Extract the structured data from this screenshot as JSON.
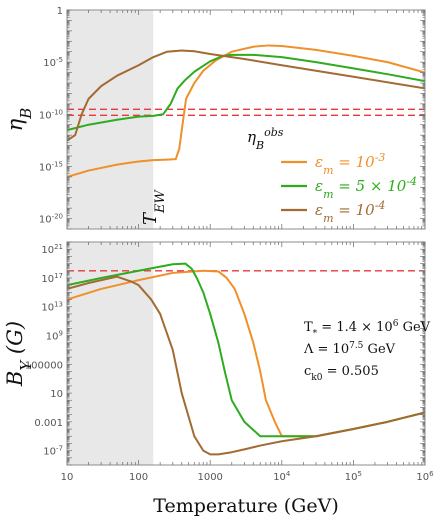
{
  "chart_data": [
    {
      "type": "line",
      "panel": "top",
      "ylabel": "η_B",
      "xscale": "log",
      "yscale": "log",
      "xlim": [
        10,
        1000000
      ],
      "ylim": [
        1e-21,
        1
      ],
      "yticks": [
        {
          "v": 1,
          "label": "1"
        },
        {
          "v": 1e-05,
          "label": "10^-5"
        },
        {
          "v": 1e-10,
          "label": "10^-10"
        },
        {
          "v": 1e-15,
          "label": "10^-15"
        },
        {
          "v": 1e-20,
          "label": "10^-20"
        }
      ],
      "shaded_region": {
        "x": [
          10,
          160
        ],
        "color": "#e8e8e8"
      },
      "ew_label": "T_EW",
      "reference_lines": [
        {
          "y": 3e-10,
          "color": "#e8383d",
          "style": "dashed"
        },
        {
          "y": 8e-11,
          "color": "#e8383d",
          "style": "dashed"
        }
      ],
      "obs_label": "η_B^obs",
      "legend_position": "right",
      "series": [
        {
          "name": "ε_m = 10^-3",
          "color": "#f0902a",
          "x": [
            10,
            20,
            50,
            100,
            160,
            250,
            330,
            370,
            410,
            460,
            600,
            800,
            1200,
            2000,
            4000,
            6500,
            10000,
            30000,
            100000,
            300000,
            1000000
          ],
          "y": [
            1e-16,
            4e-16,
            1.5e-15,
            3e-15,
            4e-15,
            4.5e-15,
            5e-15,
            5e-14,
            1e-11,
            3e-09,
            1e-07,
            1.5e-06,
            1.5e-05,
            0.0001,
            0.0003,
            0.0004,
            0.00035,
            0.00015,
            4e-05,
            1e-05,
            1e-06
          ]
        },
        {
          "name": "ε_m = 5 × 10^-4",
          "color": "#2fab1f",
          "x": [
            10,
            20,
            50,
            100,
            160,
            220,
            280,
            350,
            450,
            600,
            1000,
            1500,
            2000,
            4000,
            10000,
            30000,
            100000,
            300000,
            1000000
          ],
          "y": [
            3e-12,
            1e-11,
            3e-11,
            6e-11,
            7e-11,
            1e-10,
            1e-09,
            3e-08,
            2e-07,
            1.2e-06,
            1.2e-05,
            4e-05,
            5e-05,
            5e-05,
            3e-05,
            1e-05,
            2.5e-06,
            7e-07,
            1.5e-07
          ]
        },
        {
          "name": "ε_m = 10^-4",
          "color": "#a26b33",
          "x": [
            10,
            13,
            16,
            20,
            30,
            50,
            100,
            160,
            250,
            400,
            600,
            1000,
            3000,
            10000,
            100000,
            1000000
          ],
          "y": [
            3e-13,
            1e-12,
            1e-10,
            3e-09,
            5e-08,
            5e-07,
            5e-06,
            3e-05,
            0.0001,
            0.00013,
            0.00011,
            6e-05,
            2e-05,
            5e-06,
            4e-07,
            3e-08
          ]
        }
      ]
    },
    {
      "type": "line",
      "panel": "bottom",
      "ylabel": "B_Y (G)",
      "xlabel": "Temperature (GeV)",
      "xscale": "log",
      "yscale": "log",
      "xlim": [
        10,
        1000000
      ],
      "ylim": [
        1e-09,
        1e+22
      ],
      "xticks": [
        {
          "v": 10,
          "label": "10"
        },
        {
          "v": 100,
          "label": "100"
        },
        {
          "v": 1000,
          "label": "1000"
        },
        {
          "v": 10000,
          "label": "10^4"
        },
        {
          "v": 100000,
          "label": "10^5"
        },
        {
          "v": 1000000,
          "label": "10^6"
        }
      ],
      "yticks": [
        {
          "v": 1e+21,
          "label": "10^21"
        },
        {
          "v": 1e+17,
          "label": "10^17"
        },
        {
          "v": 10000000000000.0,
          "label": "10^13"
        },
        {
          "v": 1000000000.0,
          "label": "10^9"
        },
        {
          "v": 100000,
          "label": "100000"
        },
        {
          "v": 10,
          "label": "10"
        },
        {
          "v": 0.001,
          "label": "0.001"
        },
        {
          "v": 1e-07,
          "label": "10^-7"
        }
      ],
      "shaded_region": {
        "x": [
          10,
          160
        ],
        "color": "#e8e8e8"
      },
      "reference_lines": [
        {
          "y": 1e+18,
          "color": "#e8383d",
          "style": "dashed"
        }
      ],
      "annotations": [
        "T_* = 1.4 × 10^6 GeV",
        "Λ = 10^7.5 GeV",
        "c_k0 = 0.505"
      ],
      "series": [
        {
          "name": "ε_m = 10^-3",
          "color": "#f0902a",
          "x": [
            10,
            30,
            100,
            300,
            800,
            1300,
            1700,
            2200,
            3000,
            4000,
            5000,
            6000,
            8000,
            10000,
            30000,
            100000,
            300000,
            1000000
          ],
          "y": [
            100000000000000.0,
            3000000000000000.0,
            5e+16,
            5e+17,
            1e+18,
            8e+17,
            1e+17,
            3000000000000000.0,
            1000000000000.0,
            100000000.0,
            10000.0,
            1,
            0.001,
            1e-05,
            1e-05,
            0.0001,
            0.001,
            0.02
          ]
        },
        {
          "name": "ε_m = 5 × 10^-4",
          "color": "#2fab1f",
          "x": [
            10,
            30,
            100,
            300,
            450,
            550,
            650,
            800,
            1000,
            1300,
            1600,
            2000,
            3000,
            5000,
            10000,
            30000,
            100000,
            300000,
            1000000
          ],
          "y": [
            1e+16,
            1e+17,
            1e+18,
            8e+18,
            1e+19,
            2e+18,
            1e+17,
            1000000000000000.0,
            1000000000000.0,
            100000000.0,
            10000.0,
            1,
            0.001,
            1e-05,
            1e-05,
            1e-05,
            0.0001,
            0.001,
            0.02
          ]
        },
        {
          "name": "ε_m = 10^-4",
          "color": "#a26b33",
          "x": [
            10,
            20,
            50,
            80,
            100,
            150,
            200,
            300,
            400,
            600,
            800,
            1000,
            1300,
            2000,
            3000,
            5000,
            10000,
            30000,
            100000,
            300000,
            1000000
          ],
          "y": [
            3000000000000000.0,
            2e+16,
            1.5e+17,
            3e+16,
            1e+16,
            100000000000000.0,
            1000000000000.0,
            10000000.0,
            10,
            1e-05,
            1e-07,
            3e-08,
            3e-08,
            6e-08,
            1.5e-07,
            5e-07,
            2e-06,
            1e-05,
            0.0001,
            0.001,
            0.02
          ]
        }
      ]
    }
  ]
}
